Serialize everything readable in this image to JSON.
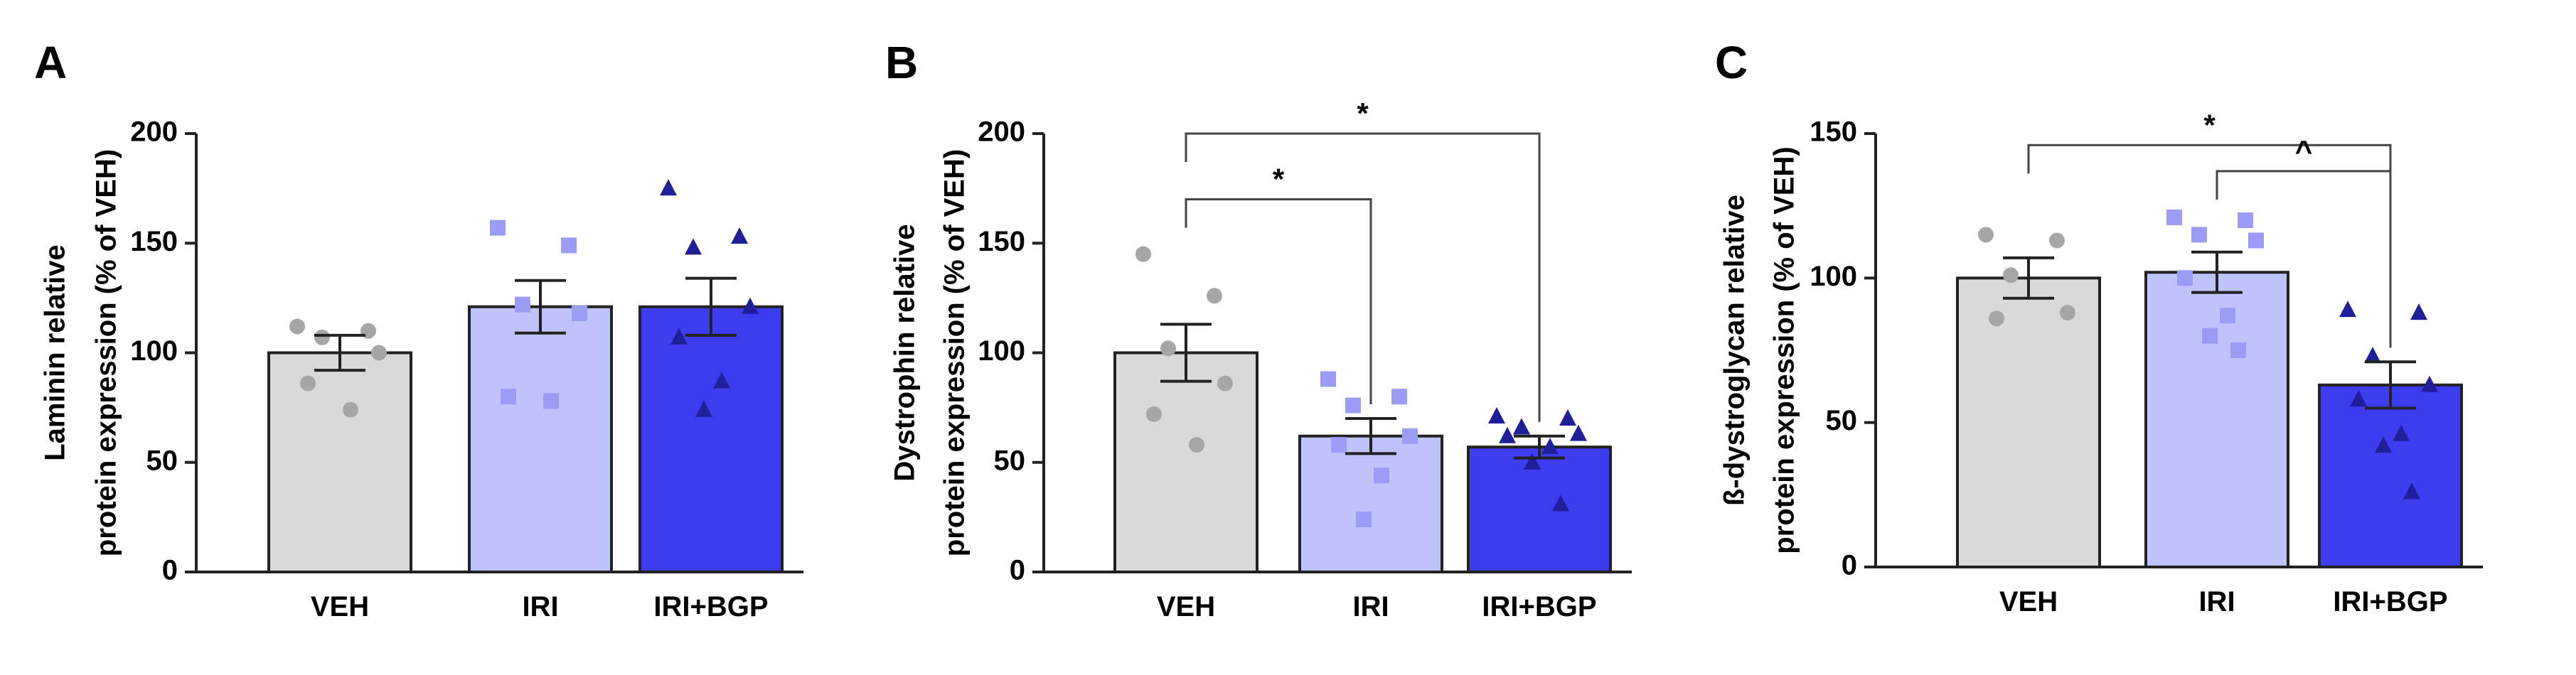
{
  "chart_data": [
    {
      "type": "bar",
      "panel_label": "A",
      "ylabel": "Laminin relative protein expression (% of VEH)",
      "ylabel_lines": [
        "Laminin relative",
        "protein expression (% of VEH)"
      ],
      "categories": [
        "VEH",
        "IRI",
        "IRI+BGP"
      ],
      "ylim": [
        0,
        200
      ],
      "yticks": [
        0,
        50,
        100,
        150,
        200
      ],
      "colors": [
        "#d9d9d9",
        "#bfc3fb",
        "#3c3cf0"
      ],
      "point_colors": [
        "#a6a6a6",
        "#9b9cf5",
        "#1f1f9a"
      ],
      "point_shapes": [
        "circle",
        "square",
        "triangle"
      ],
      "means": [
        100,
        121,
        121
      ],
      "sem": [
        8,
        12,
        13
      ],
      "points": [
        [
          112,
          110,
          107,
          100,
          86,
          74
        ],
        [
          157,
          149,
          122,
          118,
          80,
          78
        ],
        [
          175,
          153,
          148,
          121,
          107,
          87,
          74
        ]
      ],
      "comparisons": []
    },
    {
      "type": "bar",
      "panel_label": "B",
      "ylabel": "Dystrophin relative protein expression (% of VEH)",
      "ylabel_lines": [
        "Dystrophin relative",
        "protein expression (% of VEH)"
      ],
      "categories": [
        "VEH",
        "IRI",
        "IRI+BGP"
      ],
      "ylim": [
        0,
        200
      ],
      "yticks": [
        0,
        50,
        100,
        150,
        200
      ],
      "colors": [
        "#d9d9d9",
        "#bfc3fb",
        "#3c3cf0"
      ],
      "point_colors": [
        "#a6a6a6",
        "#9b9cf5",
        "#1f1f9a"
      ],
      "point_shapes": [
        "circle",
        "square",
        "triangle"
      ],
      "means": [
        100,
        62,
        57
      ],
      "sem": [
        13,
        8,
        5
      ],
      "points": [
        [
          145,
          126,
          102,
          86,
          72,
          58
        ],
        [
          88,
          80,
          76,
          62,
          58,
          44,
          24
        ],
        [
          71,
          70,
          66,
          63,
          62,
          57,
          50,
          31
        ]
      ],
      "comparisons": [
        {
          "from": 0,
          "to": 1,
          "label": "*"
        },
        {
          "from": 0,
          "to": 2,
          "label": "*"
        }
      ]
    },
    {
      "type": "bar",
      "panel_label": "C",
      "ylabel": "ß-dystroglycan relative protein expression (% of VEH)",
      "ylabel_lines": [
        "ß-dystroglycan relative",
        "protein expression (% of VEH)"
      ],
      "categories": [
        "VEH",
        "IRI",
        "IRI+BGP"
      ],
      "ylim": [
        0,
        150
      ],
      "yticks": [
        0,
        50,
        100,
        150
      ],
      "colors": [
        "#d9d9d9",
        "#bfc3fb",
        "#3c3cf0"
      ],
      "point_colors": [
        "#a6a6a6",
        "#9b9cf5",
        "#1f1f9a"
      ],
      "point_shapes": [
        "circle",
        "square",
        "triangle"
      ],
      "means": [
        100,
        102,
        63
      ],
      "sem": [
        7,
        7,
        8
      ],
      "points": [
        [
          115,
          113,
          101,
          88,
          86
        ],
        [
          121,
          120,
          115,
          113,
          100,
          87,
          80,
          75
        ],
        [
          89,
          88,
          73,
          63,
          58,
          46,
          42,
          26
        ]
      ],
      "comparisons": [
        {
          "from": 0,
          "to": 2,
          "label": "*"
        },
        {
          "from": 1,
          "to": 2,
          "label": "^"
        }
      ]
    }
  ]
}
